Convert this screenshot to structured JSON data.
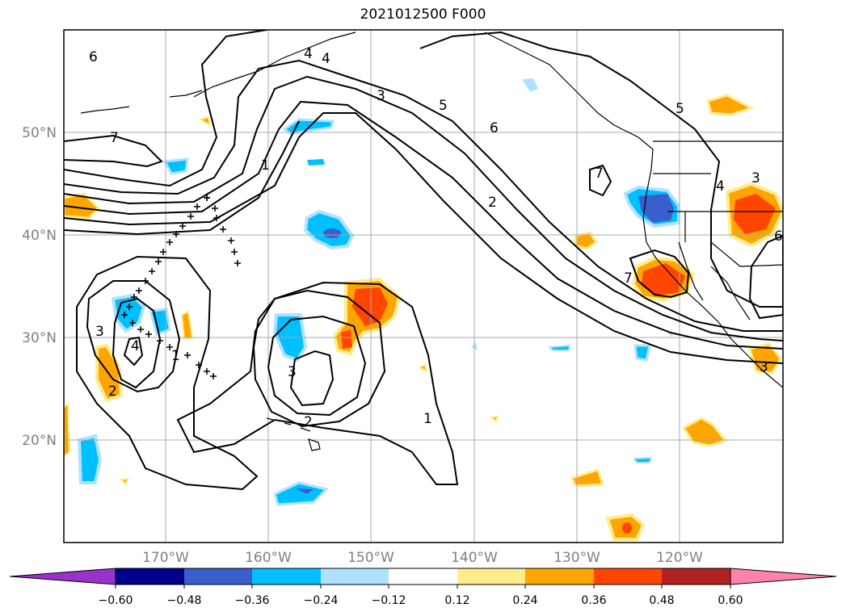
{
  "title": "2021012500 F000",
  "map": {
    "lat_labels": [
      "50°N",
      "40°N",
      "30°N",
      "20°N"
    ],
    "lon_labels": [
      "170°W",
      "160°W",
      "150°W",
      "140°W",
      "130°W",
      "120°W"
    ],
    "contour_labels": [
      "6",
      "7",
      "4",
      "1",
      "3",
      "5",
      "6",
      "2",
      "5",
      "7",
      "3",
      "4",
      "3",
      "4",
      "1",
      "2",
      "3",
      "2",
      "1",
      "7",
      "4",
      "3",
      "6"
    ]
  },
  "colorbar": {
    "tick_labels": [
      "−0.60",
      "−0.48",
      "−0.36",
      "−0.24",
      "−0.12",
      "0.12",
      "0.24",
      "0.36",
      "0.48",
      "0.60"
    ],
    "colors": [
      "#9932cc",
      "#00008b",
      "#3a5fcd",
      "#00bfff",
      "#b0e2ff",
      "#ffffff",
      "#ffec8b",
      "#ffa500",
      "#ff4500",
      "#b22222",
      "#ff82ab"
    ]
  }
}
